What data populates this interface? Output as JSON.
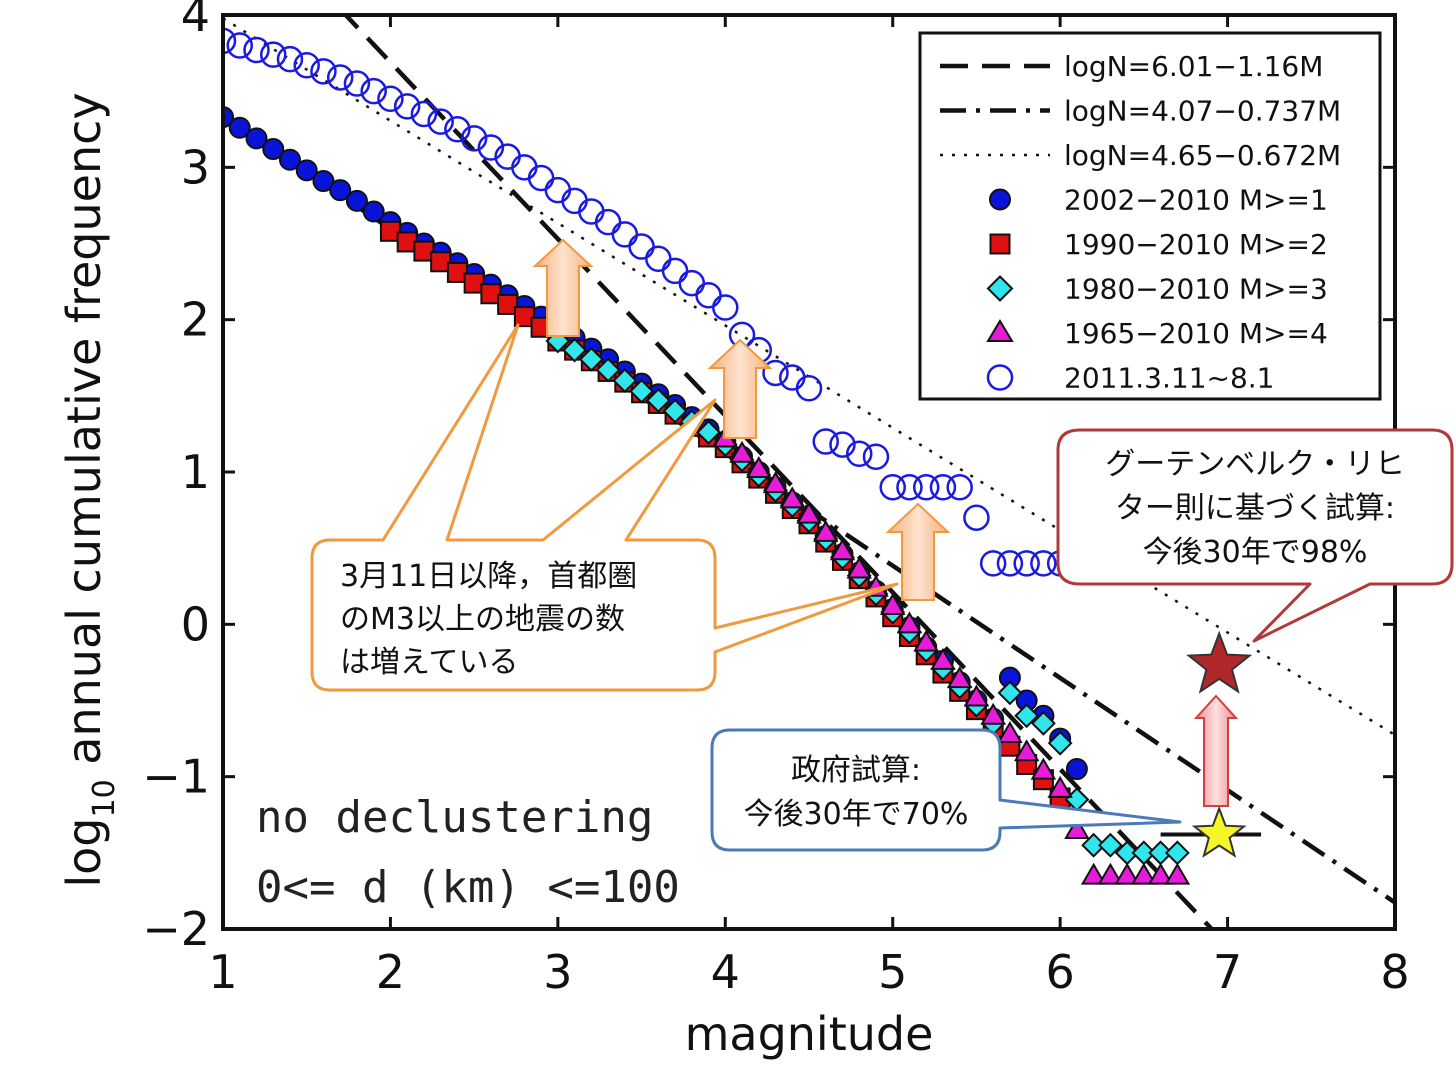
{
  "chart_data": {
    "type": "scatter",
    "title": "",
    "xlabel": "magnitude",
    "ylabel_main": "log",
    "ylabel_sub": "10",
    "ylabel_rest": " annual cumulative frequency",
    "xlim": [
      1,
      8
    ],
    "ylim": [
      -2,
      4
    ],
    "x_ticks": [
      "1",
      "2",
      "3",
      "4",
      "5",
      "6",
      "7",
      "8"
    ],
    "y_ticks": [
      "−2",
      "−1",
      "0",
      "1",
      "2",
      "3",
      "4"
    ],
    "legend_position": "top-right",
    "lines": [
      {
        "name": "logN=6.01−1.16M",
        "style": "dashed",
        "intercept": 6.01,
        "slope": -1.16,
        "x_range": [
          1,
          7.05
        ]
      },
      {
        "name": "logN=4.07−0.737M",
        "style": "dashdot",
        "intercept": 4.07,
        "slope": -0.737,
        "x_range": [
          1,
          8
        ]
      },
      {
        "name": "logN=4.65−0.672M",
        "style": "dotted",
        "intercept": 4.65,
        "slope": -0.672,
        "x_range": [
          1,
          8
        ]
      }
    ],
    "series": [
      {
        "name": "2002−2010 M>=1",
        "marker": "circle",
        "color": "#0a14d8",
        "filled": true,
        "x": [
          1.0,
          1.1,
          1.2,
          1.3,
          1.4,
          1.5,
          1.6,
          1.7,
          1.8,
          1.9,
          2.0,
          2.1,
          2.2,
          2.3,
          2.4,
          2.5,
          2.6,
          2.7,
          2.8,
          2.9,
          3.0,
          3.1,
          3.2,
          3.3,
          3.4,
          3.5,
          3.6,
          3.7,
          3.8,
          3.9,
          4.0,
          4.1,
          4.2,
          4.3,
          4.4,
          4.5,
          4.6,
          4.7,
          4.8,
          4.9,
          5.0,
          5.1,
          5.2,
          5.3,
          5.4,
          5.5,
          5.6,
          5.7,
          5.8,
          5.9,
          6.0,
          6.1
        ],
        "y": [
          3.33,
          3.26,
          3.19,
          3.12,
          3.05,
          2.98,
          2.91,
          2.85,
          2.78,
          2.71,
          2.64,
          2.57,
          2.5,
          2.44,
          2.37,
          2.3,
          2.23,
          2.16,
          2.09,
          2.02,
          1.95,
          1.88,
          1.81,
          1.74,
          1.66,
          1.58,
          1.51,
          1.44,
          1.36,
          1.28,
          1.2,
          1.1,
          1.0,
          0.9,
          0.8,
          0.7,
          0.58,
          0.46,
          0.34,
          0.22,
          0.1,
          -0.02,
          -0.15,
          -0.24,
          -0.38,
          -0.5,
          -0.62,
          -0.35,
          -0.5,
          -0.6,
          -0.75,
          -0.95
        ]
      },
      {
        "name": "1990−2010 M>=2",
        "marker": "square",
        "color": "#e01010",
        "filled": true,
        "x": [
          2.0,
          2.1,
          2.2,
          2.3,
          2.4,
          2.5,
          2.6,
          2.7,
          2.8,
          2.9,
          3.0,
          3.1,
          3.2,
          3.3,
          3.4,
          3.5,
          3.6,
          3.7,
          3.8,
          3.9,
          4.0,
          4.1,
          4.2,
          4.3,
          4.4,
          4.5,
          4.6,
          4.7,
          4.8,
          4.9,
          5.0,
          5.1,
          5.2,
          5.3,
          5.4,
          5.5,
          5.6,
          5.7,
          5.8,
          5.9,
          6.0
        ],
        "y": [
          2.58,
          2.51,
          2.45,
          2.38,
          2.31,
          2.24,
          2.17,
          2.1,
          2.02,
          1.95,
          1.86,
          1.8,
          1.73,
          1.66,
          1.59,
          1.52,
          1.45,
          1.38,
          1.3,
          1.23,
          1.16,
          1.06,
          0.96,
          0.86,
          0.76,
          0.66,
          0.54,
          0.42,
          0.3,
          0.18,
          0.05,
          -0.08,
          -0.2,
          -0.32,
          -0.44,
          -0.56,
          -0.68,
          -0.8,
          -0.92,
          -1.02,
          -1.14
        ]
      },
      {
        "name": "1980−2010 M>=3",
        "marker": "diamond",
        "color": "#30e6ec",
        "filled": true,
        "x": [
          3.0,
          3.1,
          3.2,
          3.3,
          3.4,
          3.5,
          3.6,
          3.7,
          3.8,
          3.9,
          4.0,
          4.1,
          4.2,
          4.3,
          4.4,
          4.5,
          4.6,
          4.7,
          4.8,
          4.9,
          5.0,
          5.1,
          5.2,
          5.3,
          5.4,
          5.5,
          5.6,
          5.7,
          5.8,
          5.9,
          6.0,
          6.1,
          6.2,
          6.3,
          6.4,
          6.5,
          6.6,
          6.7
        ],
        "y": [
          1.86,
          1.8,
          1.74,
          1.67,
          1.6,
          1.53,
          1.47,
          1.4,
          1.33,
          1.26,
          1.18,
          1.08,
          0.98,
          0.88,
          0.78,
          0.68,
          0.56,
          0.44,
          0.32,
          0.2,
          0.08,
          -0.05,
          -0.17,
          -0.29,
          -0.41,
          -0.53,
          -0.65,
          -0.45,
          -0.6,
          -0.65,
          -0.78,
          -1.15,
          -1.45,
          -1.45,
          -1.5,
          -1.5,
          -1.5,
          -1.5
        ]
      },
      {
        "name": "1965−2010 M>=4",
        "marker": "triangle",
        "color": "#e81cd8",
        "filled": true,
        "x": [
          4.0,
          4.1,
          4.2,
          4.3,
          4.4,
          4.5,
          4.6,
          4.7,
          4.8,
          4.9,
          5.0,
          5.1,
          5.2,
          5.3,
          5.4,
          5.5,
          5.6,
          5.7,
          5.8,
          5.9,
          6.0,
          6.1,
          6.2,
          6.3,
          6.4,
          6.5,
          6.6,
          6.7
        ],
        "y": [
          1.22,
          1.12,
          1.02,
          0.92,
          0.82,
          0.72,
          0.6,
          0.48,
          0.36,
          0.24,
          0.12,
          0.0,
          -0.12,
          -0.24,
          -0.36,
          -0.48,
          -0.6,
          -0.72,
          -0.84,
          -0.96,
          -1.08,
          -1.35,
          -1.65,
          -1.65,
          -1.65,
          -1.65,
          -1.65,
          -1.65
        ]
      },
      {
        "name": "2011.3.11~8.1",
        "marker": "circle",
        "color": "#1a1ae0",
        "filled": false,
        "x": [
          1.0,
          1.1,
          1.2,
          1.3,
          1.4,
          1.5,
          1.6,
          1.7,
          1.8,
          1.9,
          2.0,
          2.1,
          2.2,
          2.3,
          2.4,
          2.5,
          2.6,
          2.7,
          2.8,
          2.9,
          3.0,
          3.1,
          3.2,
          3.3,
          3.4,
          3.5,
          3.6,
          3.7,
          3.8,
          3.9,
          4.0,
          4.1,
          4.2,
          4.3,
          4.4,
          4.5,
          4.6,
          4.7,
          4.8,
          4.9,
          5.0,
          5.1,
          5.2,
          5.3,
          5.4,
          5.5,
          5.6,
          5.7,
          5.8,
          5.9,
          6.0
        ],
        "y": [
          3.83,
          3.8,
          3.77,
          3.74,
          3.71,
          3.67,
          3.63,
          3.59,
          3.55,
          3.5,
          3.45,
          3.4,
          3.35,
          3.3,
          3.25,
          3.19,
          3.13,
          3.07,
          3.0,
          2.93,
          2.85,
          2.78,
          2.71,
          2.64,
          2.56,
          2.48,
          2.4,
          2.32,
          2.24,
          2.16,
          2.08,
          1.9,
          1.8,
          1.65,
          1.62,
          1.55,
          1.2,
          1.18,
          1.12,
          1.1,
          0.9,
          0.9,
          0.9,
          0.9,
          0.9,
          0.7,
          0.4,
          0.4,
          0.4,
          0.4,
          0.4
        ]
      }
    ],
    "stars": [
      {
        "name": "red-star",
        "x": 6.95,
        "y": -0.27,
        "color": "#b0282a"
      },
      {
        "name": "yellow-star",
        "x": 6.95,
        "y": -1.38,
        "color": "#f5f52a"
      }
    ],
    "hline": {
      "y": -1.38,
      "x_range": [
        6.6,
        7.2
      ]
    }
  },
  "annotations": {
    "no_declustering": "no declustering",
    "depth_range": "0<= d (km) <=100"
  },
  "callouts": {
    "tokyo": {
      "lines": [
        "3月11日以降，首都圏",
        "のM3以上の地震の数",
        "は増えている"
      ]
    },
    "gutenberg": {
      "lines": [
        "グーテンベルク・リヒ",
        "ター則に基づく試算:",
        "今後30年で98%"
      ]
    },
    "government": {
      "lines": [
        "政府試算:",
        "今後30年で70%"
      ]
    }
  },
  "colors": {
    "orange_border": "#f09a40",
    "red_border": "#b03a3a",
    "blue_border": "#4a7ab8"
  }
}
